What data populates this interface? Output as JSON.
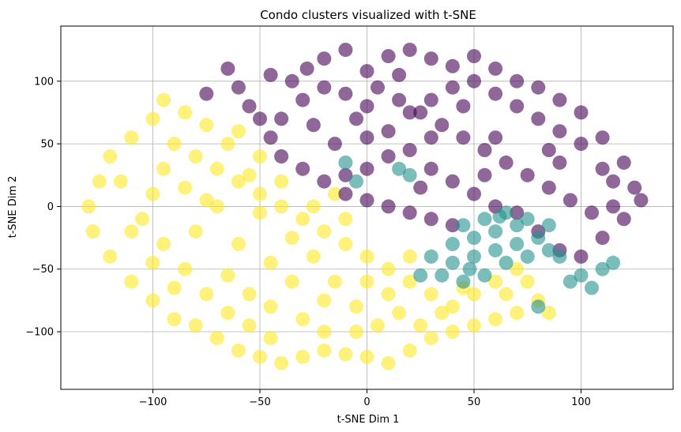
{
  "chart_data": {
    "type": "scatter",
    "title": "Condo clusters visualized with t-SNE",
    "xlabel": "t-SNE Dim 1",
    "ylabel": "t-SNE Dim 2",
    "xlim": [
      -143,
      143
    ],
    "ylim": [
      -146,
      144
    ],
    "xticks": [
      -100,
      -50,
      0,
      50,
      100
    ],
    "yticks": [
      -100,
      -50,
      0,
      50,
      100
    ],
    "xtick_labels": [
      "−100",
      "−50",
      "0",
      "50",
      "100"
    ],
    "ytick_labels": [
      "−100",
      "−50",
      "0",
      "50",
      "100"
    ],
    "grid": true,
    "legend": "none",
    "point_alpha": 0.6,
    "series": [
      {
        "color": "#440154",
        "points": [
          [
            -28,
            110
          ],
          [
            -20,
            118
          ],
          [
            -10,
            125
          ],
          [
            0,
            108
          ],
          [
            10,
            120
          ],
          [
            20,
            125
          ],
          [
            30,
            118
          ],
          [
            40,
            112
          ],
          [
            50,
            120
          ],
          [
            60,
            110
          ],
          [
            70,
            100
          ],
          [
            80,
            95
          ],
          [
            90,
            85
          ],
          [
            100,
            75
          ],
          [
            110,
            55
          ],
          [
            120,
            35
          ],
          [
            125,
            15
          ],
          [
            128,
            5
          ],
          [
            120,
            -10
          ],
          [
            110,
            -25
          ],
          [
            100,
            -40
          ],
          [
            90,
            -35
          ],
          [
            80,
            -20
          ],
          [
            70,
            -5
          ],
          [
            60,
            0
          ],
          [
            50,
            10
          ],
          [
            40,
            20
          ],
          [
            30,
            30
          ],
          [
            20,
            45
          ],
          [
            10,
            60
          ],
          [
            0,
            80
          ],
          [
            -10,
            90
          ],
          [
            -20,
            95
          ],
          [
            -30,
            85
          ],
          [
            -40,
            70
          ],
          [
            -45,
            55
          ],
          [
            -40,
            40
          ],
          [
            -30,
            30
          ],
          [
            -20,
            20
          ],
          [
            -10,
            10
          ],
          [
            0,
            5
          ],
          [
            10,
            0
          ],
          [
            20,
            -5
          ],
          [
            30,
            -10
          ],
          [
            40,
            -15
          ],
          [
            -60,
            95
          ],
          [
            -55,
            80
          ],
          [
            -50,
            70
          ],
          [
            -45,
            105
          ],
          [
            -65,
            110
          ],
          [
            -75,
            90
          ],
          [
            5,
            95
          ],
          [
            15,
            85
          ],
          [
            25,
            75
          ],
          [
            35,
            65
          ],
          [
            45,
            55
          ],
          [
            55,
            45
          ],
          [
            65,
            35
          ],
          [
            75,
            25
          ],
          [
            85,
            15
          ],
          [
            95,
            5
          ],
          [
            105,
            -5
          ],
          [
            115,
            0
          ],
          [
            110,
            30
          ],
          [
            100,
            50
          ],
          [
            90,
            60
          ],
          [
            80,
            70
          ],
          [
            70,
            80
          ],
          [
            60,
            90
          ],
          [
            50,
            100
          ],
          [
            40,
            95
          ],
          [
            30,
            85
          ],
          [
            20,
            75
          ],
          [
            10,
            40
          ],
          [
            0,
            30
          ],
          [
            -10,
            25
          ],
          [
            -15,
            50
          ],
          [
            -25,
            65
          ],
          [
            -35,
            100
          ],
          [
            0,
            55
          ],
          [
            30,
            55
          ],
          [
            60,
            55
          ],
          [
            90,
            35
          ],
          [
            45,
            80
          ],
          [
            15,
            105
          ],
          [
            -5,
            70
          ],
          [
            25,
            15
          ],
          [
            55,
            25
          ],
          [
            85,
            45
          ],
          [
            115,
            20
          ]
        ]
      },
      {
        "color": "#21918c",
        "points": [
          [
            45,
            -15
          ],
          [
            55,
            -10
          ],
          [
            65,
            -5
          ],
          [
            75,
            -10
          ],
          [
            85,
            -15
          ],
          [
            80,
            -25
          ],
          [
            70,
            -30
          ],
          [
            60,
            -35
          ],
          [
            50,
            -40
          ],
          [
            40,
            -45
          ],
          [
            35,
            -55
          ],
          [
            45,
            -60
          ],
          [
            55,
            -55
          ],
          [
            65,
            -45
          ],
          [
            75,
            -40
          ],
          [
            85,
            -35
          ],
          [
            90,
            -40
          ],
          [
            100,
            -55
          ],
          [
            105,
            -65
          ],
          [
            110,
            -50
          ],
          [
            115,
            -45
          ],
          [
            15,
            30
          ],
          [
            20,
            25
          ],
          [
            -10,
            35
          ],
          [
            -5,
            20
          ],
          [
            60,
            -20
          ],
          [
            50,
            -25
          ],
          [
            70,
            -15
          ],
          [
            40,
            -30
          ],
          [
            30,
            -40
          ],
          [
            80,
            -80
          ],
          [
            25,
            -55
          ],
          [
            95,
            -60
          ],
          [
            62,
            -8
          ],
          [
            48,
            -50
          ]
        ]
      },
      {
        "color": "#fde725",
        "points": [
          [
            -100,
            70
          ],
          [
            -110,
            55
          ],
          [
            -120,
            40
          ],
          [
            -125,
            20
          ],
          [
            -130,
            0
          ],
          [
            -128,
            -20
          ],
          [
            -120,
            -40
          ],
          [
            -110,
            -60
          ],
          [
            -100,
            -75
          ],
          [
            -90,
            -90
          ],
          [
            -80,
            -95
          ],
          [
            -70,
            -105
          ],
          [
            -60,
            -115
          ],
          [
            -50,
            -120
          ],
          [
            -40,
            -125
          ],
          [
            -30,
            -120
          ],
          [
            -20,
            -115
          ],
          [
            -10,
            -118
          ],
          [
            0,
            -120
          ],
          [
            10,
            -125
          ],
          [
            20,
            -115
          ],
          [
            30,
            -105
          ],
          [
            40,
            -100
          ],
          [
            50,
            -95
          ],
          [
            60,
            -90
          ],
          [
            70,
            -85
          ],
          [
            80,
            -75
          ],
          [
            75,
            -60
          ],
          [
            70,
            -50
          ],
          [
            60,
            -60
          ],
          [
            50,
            -70
          ],
          [
            40,
            -80
          ],
          [
            30,
            -70
          ],
          [
            20,
            -60
          ],
          [
            10,
            -50
          ],
          [
            0,
            -40
          ],
          [
            -10,
            -30
          ],
          [
            -20,
            -20
          ],
          [
            -30,
            -10
          ],
          [
            -40,
            0
          ],
          [
            -50,
            10
          ],
          [
            -60,
            20
          ],
          [
            -70,
            30
          ],
          [
            -80,
            40
          ],
          [
            -90,
            50
          ],
          [
            -95,
            30
          ],
          [
            -100,
            10
          ],
          [
            -105,
            -10
          ],
          [
            -95,
            -30
          ],
          [
            -85,
            -50
          ],
          [
            -75,
            -70
          ],
          [
            -65,
            -85
          ],
          [
            -55,
            -95
          ],
          [
            -45,
            -80
          ],
          [
            -35,
            -60
          ],
          [
            -25,
            -40
          ],
          [
            -15,
            -60
          ],
          [
            -5,
            -80
          ],
          [
            5,
            -95
          ],
          [
            15,
            -85
          ],
          [
            25,
            -95
          ],
          [
            35,
            -85
          ],
          [
            -50,
            40
          ],
          [
            -55,
            25
          ],
          [
            -65,
            50
          ],
          [
            -75,
            65
          ],
          [
            -85,
            75
          ],
          [
            -95,
            85
          ],
          [
            -70,
            0
          ],
          [
            -80,
            -20
          ],
          [
            -60,
            -30
          ],
          [
            -45,
            -45
          ],
          [
            -30,
            -90
          ],
          [
            -20,
            -100
          ],
          [
            0,
            -60
          ],
          [
            10,
            -70
          ],
          [
            20,
            -40
          ],
          [
            -10,
            -10
          ],
          [
            -35,
            -25
          ],
          [
            -50,
            -5
          ],
          [
            -65,
            -55
          ],
          [
            -85,
            15
          ],
          [
            -110,
            -20
          ],
          [
            -115,
            20
          ],
          [
            -100,
            -45
          ],
          [
            -90,
            -65
          ],
          [
            -40,
            20
          ],
          [
            -25,
            0
          ],
          [
            -15,
            10
          ],
          [
            45,
            -65
          ],
          [
            65,
            -70
          ],
          [
            85,
            -85
          ],
          [
            -5,
            -100
          ],
          [
            -45,
            -105
          ],
          [
            -60,
            60
          ],
          [
            -75,
            5
          ],
          [
            -55,
            -70
          ],
          [
            -20,
            -75
          ]
        ]
      }
    ]
  }
}
